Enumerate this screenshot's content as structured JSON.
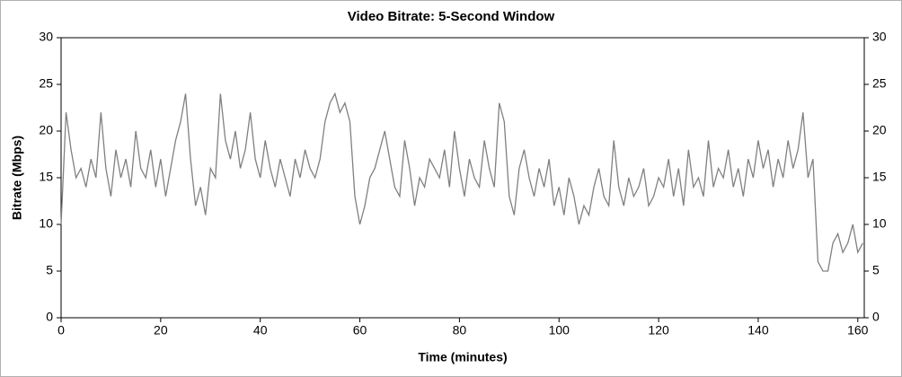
{
  "chart_data": {
    "type": "line",
    "title": "Video Bitrate: 5-Second Window",
    "xlabel": "Time (minutes)",
    "ylabel": "Bitrate (Mbps)",
    "x": [
      0,
      1,
      2,
      3,
      4,
      5,
      6,
      7,
      8,
      9,
      10,
      11,
      12,
      13,
      14,
      15,
      16,
      17,
      18,
      19,
      20,
      21,
      22,
      23,
      24,
      25,
      26,
      27,
      28,
      29,
      30,
      31,
      32,
      33,
      34,
      35,
      36,
      37,
      38,
      39,
      40,
      41,
      42,
      43,
      44,
      45,
      46,
      47,
      48,
      49,
      50,
      51,
      52,
      53,
      54,
      55,
      56,
      57,
      58,
      59,
      60,
      61,
      62,
      63,
      64,
      65,
      66,
      67,
      68,
      69,
      70,
      71,
      72,
      73,
      74,
      75,
      76,
      77,
      78,
      79,
      80,
      81,
      82,
      83,
      84,
      85,
      86,
      87,
      88,
      89,
      90,
      91,
      92,
      93,
      94,
      95,
      96,
      97,
      98,
      99,
      100,
      101,
      102,
      103,
      104,
      105,
      106,
      107,
      108,
      109,
      110,
      111,
      112,
      113,
      114,
      115,
      116,
      117,
      118,
      119,
      120,
      121,
      122,
      123,
      124,
      125,
      126,
      127,
      128,
      129,
      130,
      131,
      132,
      133,
      134,
      135,
      136,
      137,
      138,
      139,
      140,
      141,
      142,
      143,
      144,
      145,
      146,
      147,
      148,
      149,
      150,
      151,
      152,
      153,
      154,
      155,
      156,
      157,
      158,
      159,
      160,
      161
    ],
    "series": [
      {
        "name": "Video Bitrate",
        "color": "#808080",
        "values": [
          10,
          22,
          18,
          15,
          16,
          14,
          17,
          15,
          22,
          16,
          13,
          18,
          15,
          17,
          14,
          20,
          16,
          15,
          18,
          14,
          17,
          13,
          16,
          19,
          21,
          24,
          17,
          12,
          14,
          11,
          16,
          15,
          24,
          19,
          17,
          20,
          16,
          18,
          22,
          17,
          15,
          19,
          16,
          14,
          17,
          15,
          13,
          17,
          15,
          18,
          16,
          15,
          17,
          21,
          23,
          24,
          22,
          23,
          21,
          13,
          10,
          12,
          15,
          16,
          18,
          20,
          17,
          14,
          13,
          19,
          16,
          12,
          15,
          14,
          17,
          16,
          15,
          18,
          14,
          20,
          16,
          13,
          17,
          15,
          14,
          19,
          16,
          14,
          23,
          21,
          13,
          11,
          16,
          18,
          15,
          13,
          16,
          14,
          17,
          12,
          14,
          11,
          15,
          13,
          10,
          12,
          11,
          14,
          16,
          13,
          12,
          19,
          14,
          12,
          15,
          13,
          14,
          16,
          12,
          13,
          15,
          14,
          17,
          13,
          16,
          12,
          18,
          14,
          15,
          13,
          19,
          14,
          16,
          15,
          18,
          14,
          16,
          13,
          17,
          15,
          19,
          16,
          18,
          14,
          17,
          15,
          19,
          16,
          18,
          22,
          15,
          17,
          6,
          5,
          5,
          8,
          9,
          7,
          8,
          10,
          7,
          8
        ]
      }
    ],
    "xlim": [
      0,
      161.3
    ],
    "xticks": [
      0,
      20,
      40,
      60,
      80,
      100,
      120,
      140,
      160
    ],
    "ylim": [
      0,
      30
    ],
    "yticks": [
      0,
      5,
      10,
      15,
      20,
      25,
      30
    ],
    "y2lim": [
      0,
      30
    ],
    "y2ticks": [
      0,
      5,
      10,
      15,
      20,
      25,
      30
    ],
    "grid": false
  }
}
